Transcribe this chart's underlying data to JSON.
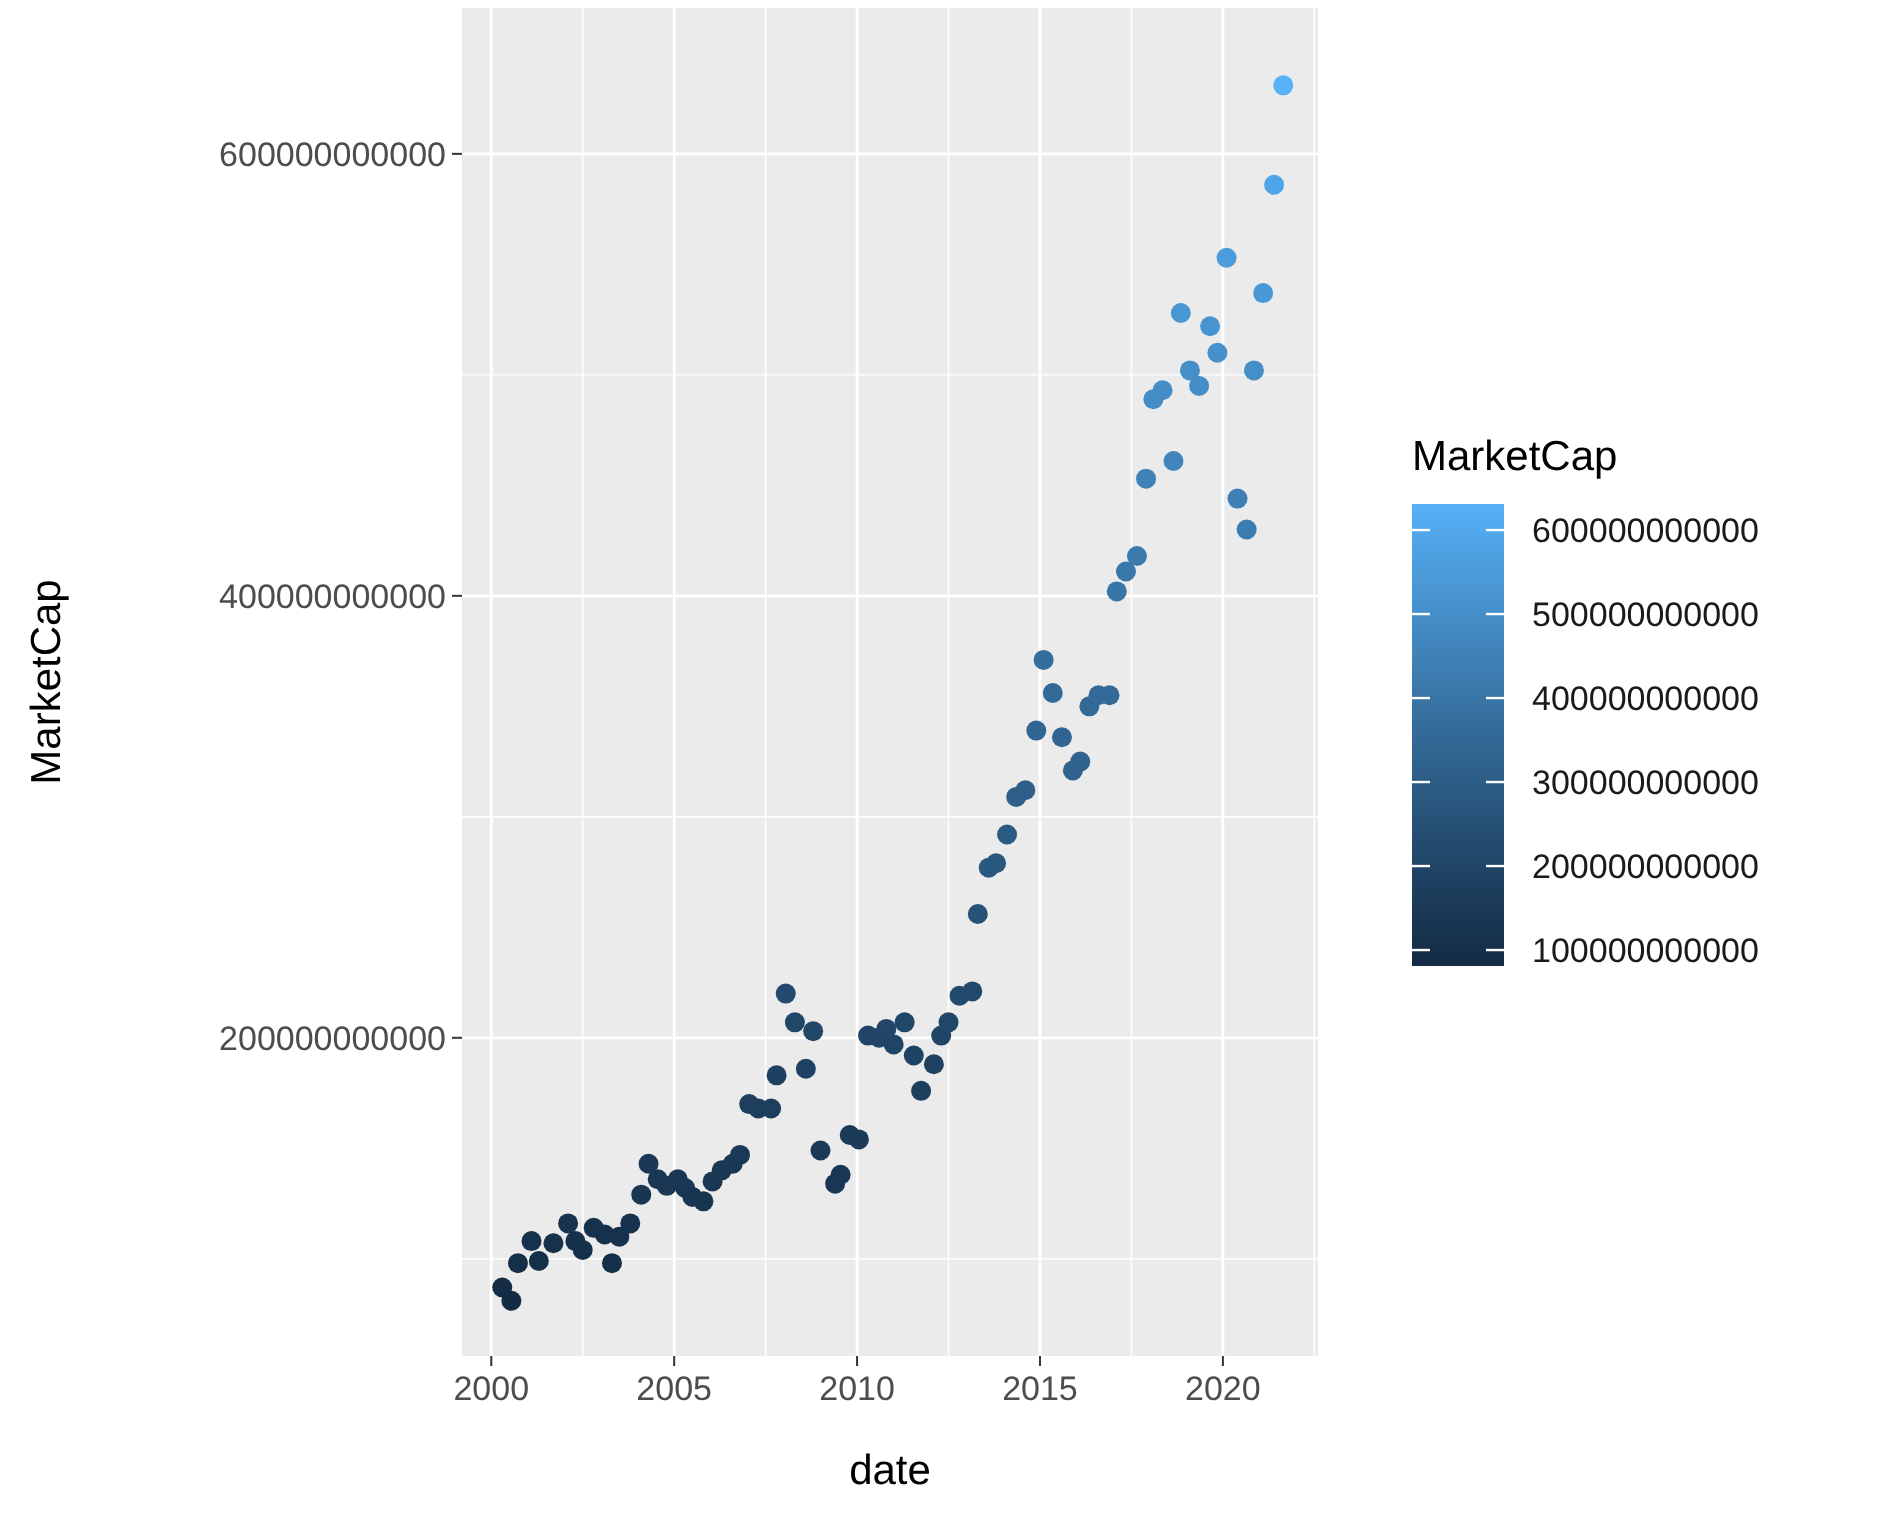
{
  "chart_data": {
    "type": "scatter",
    "xlabel": "date",
    "ylabel": "MarketCap",
    "clabel": "MarketCap",
    "x": [
      2000.3,
      2000.55,
      2000.73,
      2001.1,
      2001.3,
      2001.7,
      2002.1,
      2002.3,
      2002.5,
      2002.8,
      2003.1,
      2003.3,
      2003.5,
      2003.8,
      2004.1,
      2004.3,
      2004.55,
      2004.8,
      2005.1,
      2005.3,
      2005.5,
      2005.8,
      2006.05,
      2006.3,
      2006.6,
      2006.8,
      2007.05,
      2007.3,
      2007.65,
      2007.8,
      2008.05,
      2008.3,
      2008.6,
      2008.8,
      2009.0,
      2009.4,
      2009.55,
      2009.8,
      2010.05,
      2010.3,
      2010.6,
      2010.8,
      2011.0,
      2011.3,
      2011.55,
      2011.75,
      2012.1,
      2012.3,
      2012.5,
      2012.8,
      2013.15,
      2013.3,
      2013.6,
      2013.8,
      2014.1,
      2014.35,
      2014.6,
      2014.9,
      2015.1,
      2015.35,
      2015.6,
      2015.9,
      2016.1,
      2016.35,
      2016.6,
      2016.9,
      2017.1,
      2017.35,
      2017.65,
      2017.9,
      2018.1,
      2018.35,
      2018.65,
      2018.85,
      2019.1,
      2019.35,
      2019.65,
      2019.85,
      2020.1,
      2020.4,
      2020.65,
      2020.85,
      2021.1,
      2021.4,
      2021.65
    ],
    "values": [
      87000000000,
      81000000000,
      98000000000,
      108000000000,
      99000000000,
      107000000000,
      116000000000,
      108000000000,
      104000000000,
      114000000000,
      111000000000,
      98000000000,
      110000000000,
      116000000000,
      129000000000,
      143000000000,
      136000000000,
      133000000000,
      136000000000,
      132000000000,
      128000000000,
      126000000000,
      135000000000,
      140000000000,
      143000000000,
      147000000000,
      170000000000,
      168000000000,
      168000000000,
      183000000000,
      220000000000,
      207000000000,
      186000000000,
      203000000000,
      149000000000,
      134000000000,
      138000000000,
      156000000000,
      154000000000,
      201000000000,
      200000000000,
      204000000000,
      197000000000,
      207000000000,
      192000000000,
      176000000000,
      188000000000,
      201000000000,
      207000000000,
      219000000000,
      221000000000,
      256000000000,
      277000000000,
      279000000000,
      292000000000,
      309000000000,
      312000000000,
      339000000000,
      371000000000,
      356000000000,
      336000000000,
      321000000000,
      325000000000,
      350000000000,
      355000000000,
      355000000000,
      402000000000,
      411000000000,
      418000000000,
      453000000000,
      489000000000,
      493000000000,
      461000000000,
      528000000000,
      502000000000,
      495000000000,
      522000000000,
      510000000000,
      553000000000,
      444000000000,
      430000000000,
      502000000000,
      537000000000,
      586000000000,
      631000000000
    ],
    "cvalues": [
      87000000000,
      81000000000,
      98000000000,
      108000000000,
      99000000000,
      107000000000,
      116000000000,
      108000000000,
      104000000000,
      114000000000,
      111000000000,
      98000000000,
      110000000000,
      116000000000,
      129000000000,
      143000000000,
      136000000000,
      133000000000,
      136000000000,
      132000000000,
      128000000000,
      126000000000,
      135000000000,
      140000000000,
      143000000000,
      147000000000,
      170000000000,
      168000000000,
      168000000000,
      183000000000,
      220000000000,
      207000000000,
      186000000000,
      203000000000,
      149000000000,
      134000000000,
      138000000000,
      156000000000,
      154000000000,
      201000000000,
      200000000000,
      204000000000,
      197000000000,
      207000000000,
      192000000000,
      176000000000,
      188000000000,
      201000000000,
      207000000000,
      219000000000,
      221000000000,
      256000000000,
      277000000000,
      279000000000,
      292000000000,
      309000000000,
      312000000000,
      339000000000,
      371000000000,
      356000000000,
      336000000000,
      321000000000,
      325000000000,
      350000000000,
      355000000000,
      355000000000,
      402000000000,
      411000000000,
      418000000000,
      453000000000,
      489000000000,
      493000000000,
      461000000000,
      528000000000,
      502000000000,
      495000000000,
      522000000000,
      510000000000,
      553000000000,
      444000000000,
      430000000000,
      502000000000,
      537000000000,
      586000000000,
      631000000000
    ],
    "xlim": [
      1999.2,
      2022.6
    ],
    "xticks": [
      2000,
      2005,
      2010,
      2015,
      2020
    ],
    "ylim": [
      56000000000,
      666000000000
    ],
    "yticks": [
      200000000000,
      400000000000,
      600000000000
    ],
    "clim": [
      81000000000,
      631000000000
    ],
    "cticks": [
      100000000000,
      200000000000,
      300000000000,
      400000000000,
      500000000000,
      600000000000
    ],
    "grid": true,
    "marker": "circle"
  }
}
